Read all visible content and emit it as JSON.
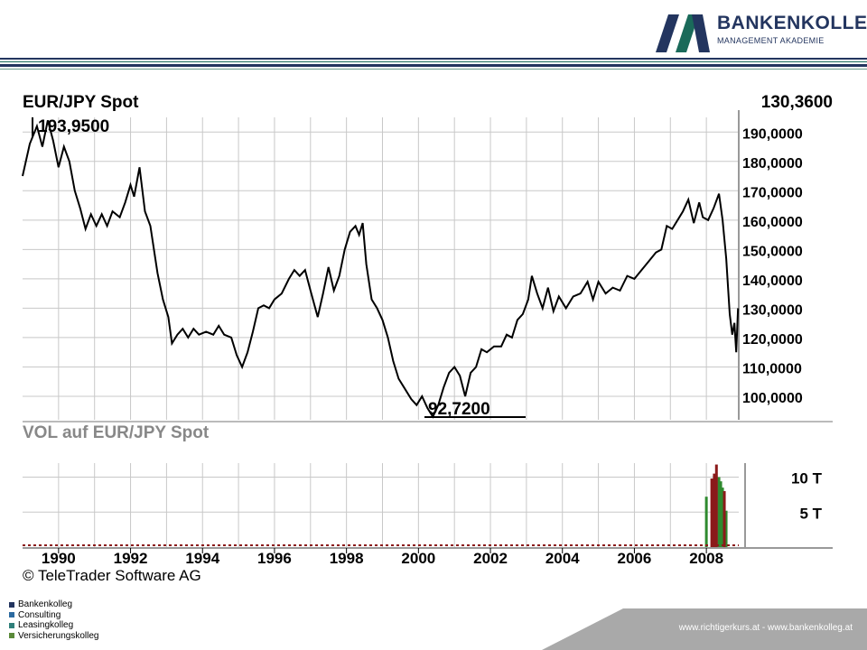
{
  "brand": {
    "name": "BANKENKOLLEG",
    "tagline": "MANAGEMENT AKADEMIE",
    "color": "#23355f",
    "accent": "#1a6a5a"
  },
  "chart": {
    "title": "EUR/JPY Spot",
    "last_price": "130,3600",
    "high_label": "193,9500",
    "low_label": "92,7200",
    "volume_title": "VOL  auf EUR/JPY Spot",
    "copyright": "© TeleTrader Software AG"
  },
  "chart_data": [
    {
      "type": "line",
      "title": "EUR/JPY Spot",
      "ylim": [
        92,
        195
      ],
      "xlim": [
        1989.0,
        2008.9
      ],
      "y_ticks": [
        {
          "value": 190,
          "label": "190,0000"
        },
        {
          "value": 180,
          "label": "180,0000"
        },
        {
          "value": 170,
          "label": "170,0000"
        },
        {
          "value": 160,
          "label": "160,0000"
        },
        {
          "value": 150,
          "label": "150,0000"
        },
        {
          "value": 140,
          "label": "140,0000"
        },
        {
          "value": 130,
          "label": "130,0000"
        },
        {
          "value": 120,
          "label": "120,0000"
        },
        {
          "value": 110,
          "label": "110,0000"
        },
        {
          "value": 100,
          "label": "100,0000"
        }
      ],
      "x_ticks": [
        "1990",
        "1992",
        "1994",
        "1996",
        "1998",
        "2000",
        "2002",
        "2004",
        "2006",
        "2008"
      ],
      "grid": true,
      "series": [
        {
          "values": [
            [
              1989.0,
              175
            ],
            [
              1989.2,
              186
            ],
            [
              1989.4,
              192
            ],
            [
              1989.55,
              185
            ],
            [
              1989.7,
              194
            ],
            [
              1989.85,
              187
            ],
            [
              1990.0,
              178
            ],
            [
              1990.15,
              185
            ],
            [
              1990.3,
              180
            ],
            [
              1990.45,
              170
            ],
            [
              1990.6,
              164
            ],
            [
              1990.75,
              157
            ],
            [
              1990.9,
              162
            ],
            [
              1991.05,
              158
            ],
            [
              1991.2,
              162
            ],
            [
              1991.35,
              158
            ],
            [
              1991.5,
              163
            ],
            [
              1991.7,
              161
            ],
            [
              1991.85,
              166
            ],
            [
              1992.0,
              172
            ],
            [
              1992.1,
              168
            ],
            [
              1992.25,
              178
            ],
            [
              1992.4,
              163
            ],
            [
              1992.55,
              158
            ],
            [
              1992.75,
              142
            ],
            [
              1992.9,
              133
            ],
            [
              1993.05,
              127
            ],
            [
              1993.15,
              118
            ],
            [
              1993.3,
              121
            ],
            [
              1993.45,
              123
            ],
            [
              1993.6,
              120
            ],
            [
              1993.75,
              123
            ],
            [
              1993.9,
              121
            ],
            [
              1994.1,
              122
            ],
            [
              1994.3,
              121
            ],
            [
              1994.45,
              124
            ],
            [
              1994.6,
              121
            ],
            [
              1994.8,
              120
            ],
            [
              1994.95,
              114
            ],
            [
              1995.1,
              110
            ],
            [
              1995.25,
              115
            ],
            [
              1995.4,
              122
            ],
            [
              1995.55,
              130
            ],
            [
              1995.7,
              131
            ],
            [
              1995.85,
              130
            ],
            [
              1996.0,
              133
            ],
            [
              1996.2,
              135
            ],
            [
              1996.4,
              140
            ],
            [
              1996.55,
              143
            ],
            [
              1996.7,
              141
            ],
            [
              1996.85,
              143
            ],
            [
              1997.0,
              136
            ],
            [
              1997.2,
              127
            ],
            [
              1997.35,
              135
            ],
            [
              1997.5,
              144
            ],
            [
              1997.65,
              136
            ],
            [
              1997.8,
              141
            ],
            [
              1997.95,
              150
            ],
            [
              1998.1,
              156
            ],
            [
              1998.25,
              158
            ],
            [
              1998.35,
              155
            ],
            [
              1998.45,
              159
            ],
            [
              1998.55,
              145
            ],
            [
              1998.7,
              133
            ],
            [
              1998.85,
              130
            ],
            [
              1999.0,
              126
            ],
            [
              1999.15,
              120
            ],
            [
              1999.3,
              112
            ],
            [
              1999.45,
              106
            ],
            [
              1999.6,
              103
            ],
            [
              1999.8,
              99
            ],
            [
              1999.95,
              97
            ],
            [
              2000.1,
              100
            ],
            [
              2000.25,
              96
            ],
            [
              2000.4,
              93
            ],
            [
              2000.55,
              97
            ],
            [
              2000.7,
              103
            ],
            [
              2000.85,
              108
            ],
            [
              2001.0,
              110
            ],
            [
              2001.15,
              107
            ],
            [
              2001.3,
              100
            ],
            [
              2001.45,
              108
            ],
            [
              2001.6,
              110
            ],
            [
              2001.75,
              116
            ],
            [
              2001.9,
              115
            ],
            [
              2002.1,
              117
            ],
            [
              2002.3,
              117
            ],
            [
              2002.45,
              121
            ],
            [
              2002.6,
              120
            ],
            [
              2002.75,
              126
            ],
            [
              2002.9,
              128
            ],
            [
              2003.05,
              133
            ],
            [
              2003.15,
              141
            ],
            [
              2003.3,
              135
            ],
            [
              2003.45,
              130
            ],
            [
              2003.6,
              137
            ],
            [
              2003.75,
              129
            ],
            [
              2003.9,
              134
            ],
            [
              2004.1,
              130
            ],
            [
              2004.3,
              134
            ],
            [
              2004.5,
              135
            ],
            [
              2004.7,
              139
            ],
            [
              2004.85,
              133
            ],
            [
              2005.0,
              139
            ],
            [
              2005.2,
              135
            ],
            [
              2005.4,
              137
            ],
            [
              2005.6,
              136
            ],
            [
              2005.8,
              141
            ],
            [
              2006.0,
              140
            ],
            [
              2006.2,
              143
            ],
            [
              2006.4,
              146
            ],
            [
              2006.6,
              149
            ],
            [
              2006.75,
              150
            ],
            [
              2006.9,
              158
            ],
            [
              2007.05,
              157
            ],
            [
              2007.2,
              160
            ],
            [
              2007.35,
              163
            ],
            [
              2007.5,
              167
            ],
            [
              2007.65,
              159
            ],
            [
              2007.8,
              166
            ],
            [
              2007.9,
              161
            ],
            [
              2008.05,
              160
            ],
            [
              2008.2,
              164
            ],
            [
              2008.35,
              169
            ],
            [
              2008.45,
              160
            ],
            [
              2008.55,
              147
            ],
            [
              2008.65,
              128
            ],
            [
              2008.72,
              121
            ],
            [
              2008.78,
              125
            ],
            [
              2008.83,
              115
            ],
            [
              2008.88,
              130
            ]
          ]
        }
      ]
    },
    {
      "type": "bar",
      "title": "VOL  auf EUR/JPY Spot",
      "ylim": [
        0,
        12
      ],
      "y_ticks": [
        {
          "value": 10,
          "label": "10 T"
        },
        {
          "value": 5,
          "label": "5 T"
        }
      ],
      "grid": true,
      "series": [
        {
          "name": "up",
          "color": "#2f8a2f",
          "values": [
            [
              2008.0,
              7.2
            ],
            [
              2008.35,
              10.0
            ],
            [
              2008.4,
              9.4
            ],
            [
              2008.45,
              8.5
            ],
            [
              2008.55,
              5.2
            ]
          ]
        },
        {
          "name": "down",
          "color": "#8b1a1a",
          "values": [
            [
              2008.15,
              9.8
            ],
            [
              2008.22,
              10.5
            ],
            [
              2008.28,
              11.8
            ],
            [
              2008.5,
              8.0
            ]
          ]
        }
      ]
    }
  ],
  "legend": [
    {
      "label": "Bankenkolleg",
      "color": "#23355f"
    },
    {
      "label": "Consulting",
      "color": "#2c6aa0"
    },
    {
      "label": "Leasingkolleg",
      "color": "#2f7f7a"
    },
    {
      "label": "Versicherungskolleg",
      "color": "#5a8a3a"
    }
  ],
  "footer": {
    "text": "www.richtigerkurs.at  -  www.bankenkolleg.at",
    "bar_color": "#a9a9a9"
  }
}
